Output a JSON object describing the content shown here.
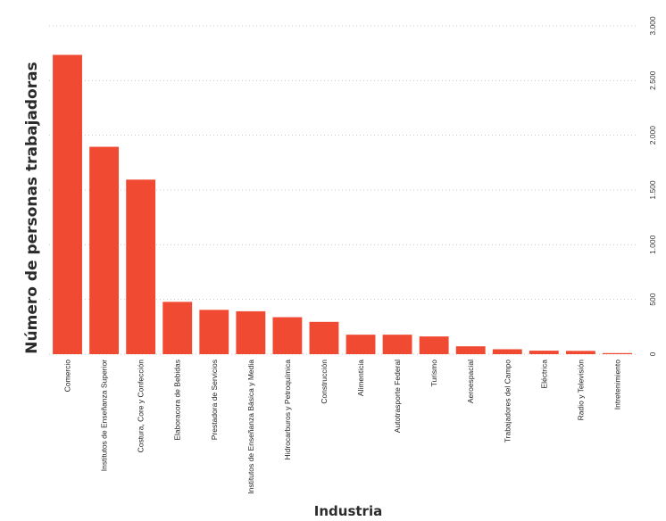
{
  "chart_data": {
    "type": "bar",
    "xlabel": "Industria",
    "ylabel": "Número de personas trabajadoras",
    "ylim": [
      0,
      3000
    ],
    "yticks": [
      0,
      500,
      1000,
      1500,
      2000,
      2500,
      3000
    ],
    "ytick_labels": [
      "0",
      "500",
      "1.000",
      "1.500",
      "2.000",
      "2.500",
      "3.000"
    ],
    "y_axis_position": "right",
    "grid": true,
    "bar_color": "#f04a32",
    "categories": [
      "Comercio",
      "Institutos de Enseñanza Superior",
      "Costura, Core y Confección",
      "Elaboracora de Bebidas",
      "Prestadora de Servicios",
      "Institutos de Enseñanza Básica y Media",
      "Hidrocarburos y Petroquímica",
      "Construcción",
      "Alimenticia",
      "Autotrasporte Federal",
      "Turismo",
      "Aeroespacial",
      "Trabajadores del Campo",
      "Eléctrica",
      "Radio y Televisión",
      "Intretenimiento"
    ],
    "values": [
      2735,
      1895,
      1595,
      478,
      405,
      392,
      338,
      295,
      178,
      178,
      162,
      72,
      45,
      32,
      30,
      10
    ]
  }
}
